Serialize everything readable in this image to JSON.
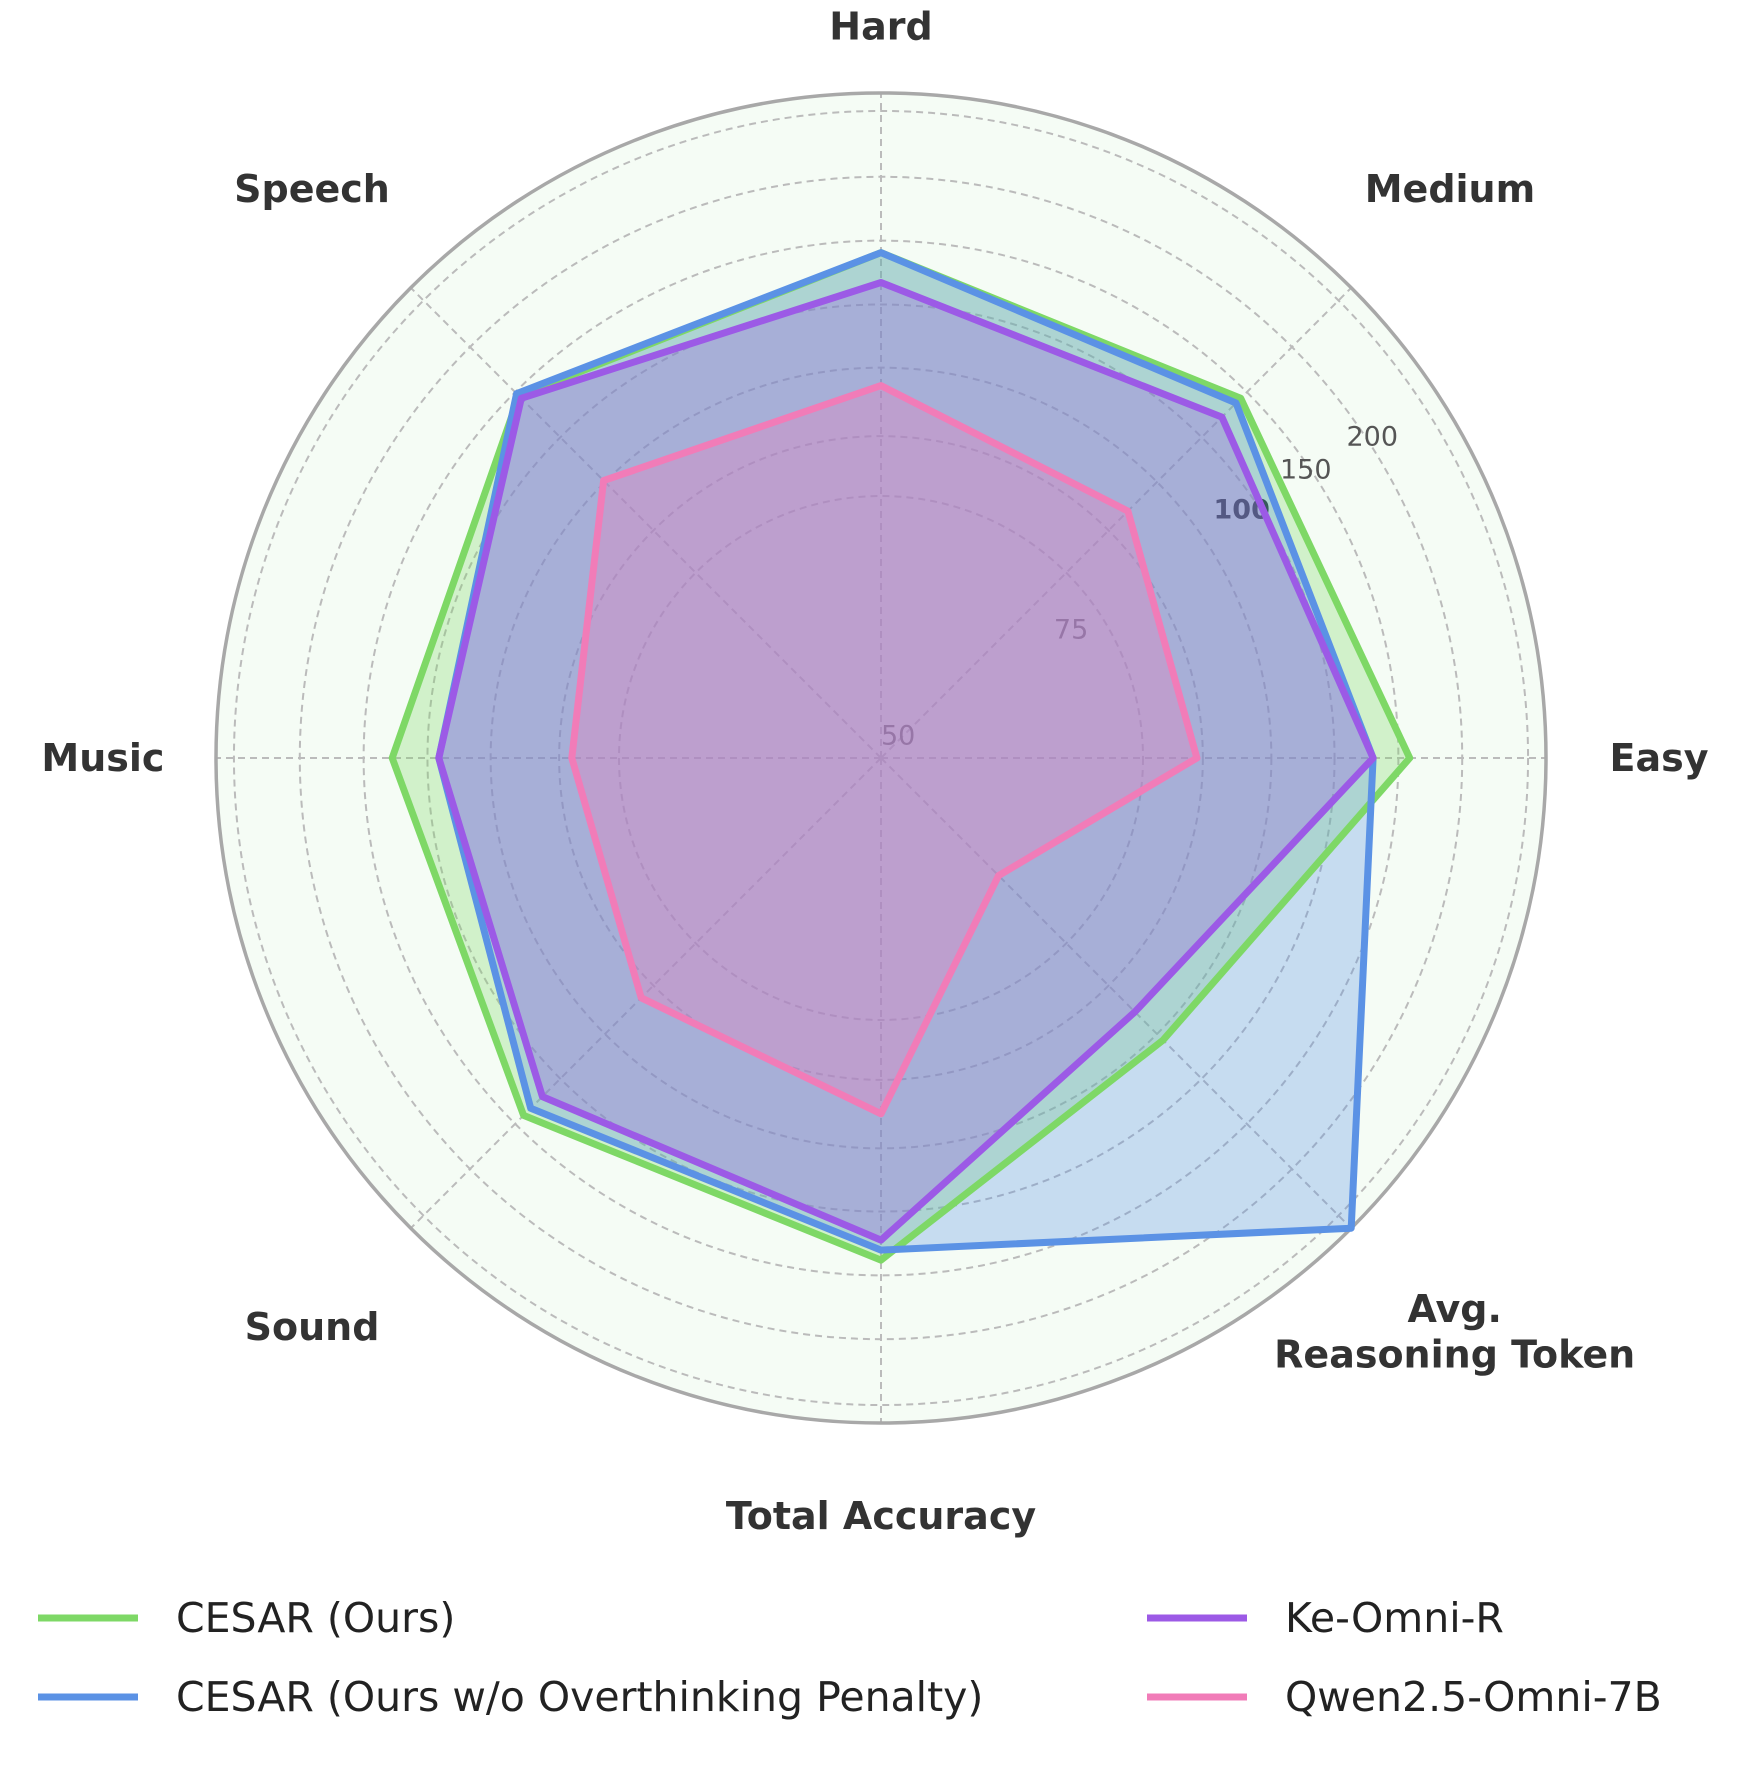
{
  "chart_data": {
    "type": "radar",
    "axes": [
      {
        "label": "Easy",
        "max": 100
      },
      {
        "label": "Medium",
        "max": 100
      },
      {
        "label": "Hard",
        "max": 100
      },
      {
        "label": "Speech",
        "max": 100
      },
      {
        "label": "Music",
        "max": 100
      },
      {
        "label": "Sound",
        "max": 100
      },
      {
        "label": "Total Accuracy",
        "max": 100
      },
      {
        "label": "Avg.\nReasoning Token",
        "max": 200
      }
    ],
    "ring_tick_labels": [
      {
        "text": "50",
        "style": "normal"
      },
      {
        "text": "75",
        "style": "normal"
      },
      {
        "text": "100",
        "style": "bold"
      },
      {
        "text": "150",
        "style": "normal"
      },
      {
        "text": "200",
        "style": "normal"
      }
    ],
    "series": [
      {
        "name": "CESAR (Ours)",
        "color": "#7ed866",
        "fill_opacity": 0.3,
        "values": [
          79.5,
          76.5,
          76.0,
          77.0,
          73.5,
          76.0,
          75.5,
          120
        ]
      },
      {
        "name": "CESAR (Ours w/o Overthinking Penalty)",
        "color": "#5b92e5",
        "fill_opacity": 0.3,
        "values": [
          74.0,
          75.5,
          76.0,
          77.5,
          66.5,
          74.5,
          74.0,
          200
        ]
      },
      {
        "name": "Ke-Omni-R",
        "color": "#9c5ae6",
        "fill_opacity": 0.3,
        "values": [
          74.0,
          72.5,
          71.5,
          76.5,
          66.5,
          72.0,
          72.5,
          108
        ]
      },
      {
        "name": "Qwen2.5-Omni-7B",
        "color": "#f17cb8",
        "fill_opacity": 0.3,
        "values": [
          47.5,
          52.5,
          56.0,
          59.0,
          46.5,
          51.0,
          53.5,
          50
        ]
      }
    ],
    "grid": true,
    "legend_position": "bottom"
  }
}
